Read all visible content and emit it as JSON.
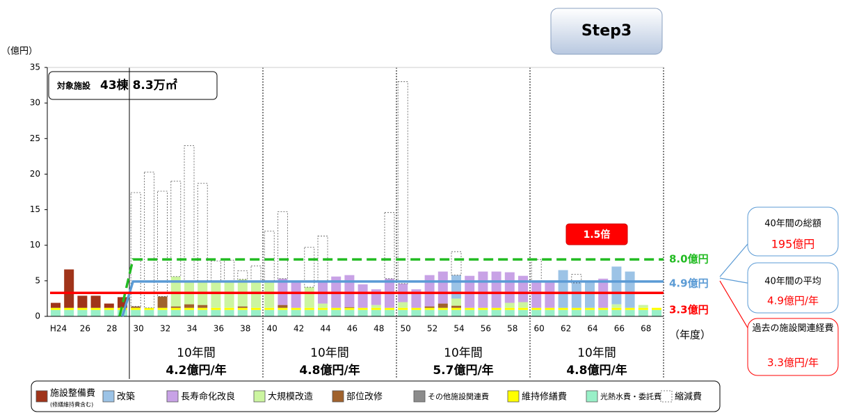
{
  "step": "Step3",
  "chart_data": {
    "type": "bar",
    "stacked": true,
    "y_unit": "（億円）",
    "x_unit": "（年度）",
    "facility_box": {
      "label": "対象施設",
      "value": "43棟 8.3万㎡"
    },
    "categories": [
      "H24",
      null,
      "26",
      null,
      "28",
      null,
      "30",
      null,
      "32",
      null,
      "34",
      null,
      "36",
      null,
      "38",
      null,
      "40",
      null,
      "42",
      null,
      "44",
      null,
      "46",
      null,
      "48",
      null,
      "50",
      null,
      "52",
      null,
      "54",
      null,
      "56",
      null,
      "58",
      null,
      "60",
      null,
      "62",
      null,
      "64",
      null,
      "66",
      null,
      "68",
      null
    ],
    "ylim": [
      0,
      35
    ],
    "yticks": [
      0,
      5,
      10,
      15,
      20,
      25,
      30,
      35
    ],
    "series": [
      {
        "name": "施設整備費",
        "note": "(修繕維持費含む)",
        "color": "#a0341a",
        "values": [
          0.7,
          5.4,
          1.7,
          1.7,
          0.6,
          1.5,
          0,
          0,
          0,
          0,
          0,
          0,
          0,
          0,
          0,
          0,
          0,
          0,
          0,
          0,
          0,
          0,
          0,
          0,
          0,
          0,
          0,
          0,
          0,
          0,
          0,
          0,
          0,
          0,
          0,
          0,
          0,
          0,
          0,
          0,
          0,
          0,
          0,
          0,
          0,
          0
        ]
      },
      {
        "name": "改築",
        "color": "#9cc3e6",
        "values": [
          0,
          0,
          0,
          0,
          0,
          0,
          0,
          0,
          0,
          0,
          0,
          0,
          0,
          0,
          0,
          0,
          0,
          0,
          0,
          0,
          0,
          0,
          0,
          0,
          0,
          0,
          0,
          0,
          0,
          0,
          3.3,
          0,
          0,
          0,
          0,
          0,
          0,
          0,
          5.3,
          3.5,
          3.8,
          0,
          5.3,
          5.1,
          0,
          0
        ]
      },
      {
        "name": "長寿命化改良",
        "color": "#c8a2e6",
        "values": [
          0,
          0,
          0,
          0,
          0,
          0,
          0,
          0,
          0,
          0,
          0,
          0,
          0,
          0,
          0,
          0,
          0,
          3.7,
          3.8,
          0,
          3.2,
          4.4,
          4.5,
          3.3,
          2.2,
          4.1,
          2.6,
          2.6,
          4.4,
          4.5,
          0,
          4.5,
          5.1,
          5.1,
          4.3,
          3.7,
          3.8,
          3.8,
          0,
          0,
          0,
          4.1,
          0,
          0,
          0,
          0
        ]
      },
      {
        "name": "大規模改造",
        "color": "#ccf5a0",
        "values": [
          0,
          0,
          0,
          0,
          0,
          0,
          0,
          0,
          0,
          4.2,
          3.3,
          3.4,
          3.8,
          3.8,
          3.8,
          3.8,
          3.8,
          0,
          0,
          2.9,
          0.6,
          0,
          0,
          0,
          0.4,
          0,
          0.8,
          0,
          0,
          0,
          1.0,
          0,
          0,
          0,
          0.7,
          0.8,
          0,
          0,
          0,
          0,
          0,
          0,
          0.5,
          0,
          0.4,
          0
        ]
      },
      {
        "name": "部位改修",
        "color": "#a0622d",
        "values": [
          0,
          0,
          0,
          0,
          0,
          0,
          0.2,
          0,
          1.6,
          0.2,
          0.5,
          0.4,
          0,
          0,
          0.2,
          0,
          0,
          0.4,
          0,
          0,
          0,
          0,
          0.1,
          0,
          0,
          0,
          0,
          0,
          0.2,
          0.6,
          0.3,
          0,
          0,
          0,
          0,
          0,
          0,
          0,
          0,
          0,
          0,
          0,
          0,
          0,
          0,
          0
        ]
      },
      {
        "name": "その他施設関連費",
        "color": "#8c8c8c",
        "values": [
          0,
          0,
          0,
          0,
          0,
          0,
          0,
          0,
          0,
          0,
          0,
          0,
          0,
          0,
          0,
          0,
          0,
          0,
          0,
          0,
          0,
          0,
          0,
          0,
          0,
          0,
          0,
          0,
          0,
          0,
          0,
          0,
          0,
          0,
          0,
          0,
          0,
          0,
          0,
          0,
          0,
          0,
          0,
          0,
          0,
          0
        ]
      },
      {
        "name": "維持修繕費",
        "color": "#ffff00",
        "values": [
          0.3,
          0.3,
          0.3,
          0.3,
          0.3,
          0.3,
          0.3,
          0.3,
          0.3,
          0.3,
          0.3,
          0.3,
          0.3,
          0.3,
          0.3,
          0.3,
          0.3,
          0.3,
          0.3,
          0.3,
          0.3,
          0.3,
          0.3,
          0.3,
          0.3,
          0.3,
          0.3,
          0.3,
          0.3,
          0.3,
          0.3,
          0.3,
          0.3,
          0.3,
          0.3,
          0.3,
          0.3,
          0.3,
          0.3,
          0.3,
          0.3,
          0.3,
          0.3,
          0.3,
          0.3,
          0.3
        ]
      },
      {
        "name": "光熱水費・委託費",
        "color": "#99f0c8",
        "values": [
          0.9,
          0.9,
          0.9,
          0.9,
          0.9,
          0.9,
          0.9,
          0.9,
          0.9,
          0.9,
          0.9,
          0.9,
          0.9,
          0.9,
          0.9,
          0.9,
          0.9,
          0.9,
          0.9,
          0.9,
          0.9,
          0.9,
          0.9,
          0.9,
          0.9,
          0.9,
          0.9,
          0.9,
          0.9,
          0.9,
          0.9,
          0.9,
          0.9,
          0.9,
          0.9,
          0.9,
          0.9,
          0.9,
          0.9,
          0.9,
          0.9,
          0.9,
          0.9,
          0.9,
          0.9,
          0.9
        ]
      },
      {
        "name": "縮減費",
        "color": "#ffffff",
        "values": [
          0,
          0,
          0,
          0,
          0,
          0,
          16.0,
          19.1,
          14.8,
          13.4,
          19.0,
          13.7,
          2.8,
          2.9,
          1.2,
          2.1,
          7.0,
          9.4,
          0,
          5.6,
          6.3,
          0,
          0,
          0,
          0,
          9.3,
          28.4,
          0,
          0,
          0,
          3.3,
          0,
          0,
          0,
          0,
          0,
          3.0,
          0,
          0,
          1.2,
          0,
          0,
          0,
          0,
          0,
          0
        ]
      }
    ],
    "reference_lines": [
      {
        "value": 8.0,
        "label": "8.0億円",
        "color": "#22bb22",
        "dashed": true
      },
      {
        "value": 4.9,
        "label": "4.9億円",
        "color": "#5b9bd5",
        "dashed": false
      },
      {
        "value": 3.3,
        "label": "3.3億円",
        "color": "#ff0000",
        "dashed": false
      }
    ],
    "ratio_label": "1.5倍",
    "periods": [
      {
        "label": "10年間",
        "average": "4.2億円/年"
      },
      {
        "label": "10年間",
        "average": "4.8億円/年"
      },
      {
        "label": "10年間",
        "average": "5.7億円/年"
      },
      {
        "label": "10年間",
        "average": "4.8億円/年"
      }
    ],
    "callouts": [
      {
        "title": "40年間の総額",
        "value": "195億円"
      },
      {
        "title": "40年間の平均",
        "value": "4.9億円/年"
      },
      {
        "title": "過去の施設関連経費",
        "value": "3.3億円/年"
      }
    ]
  }
}
